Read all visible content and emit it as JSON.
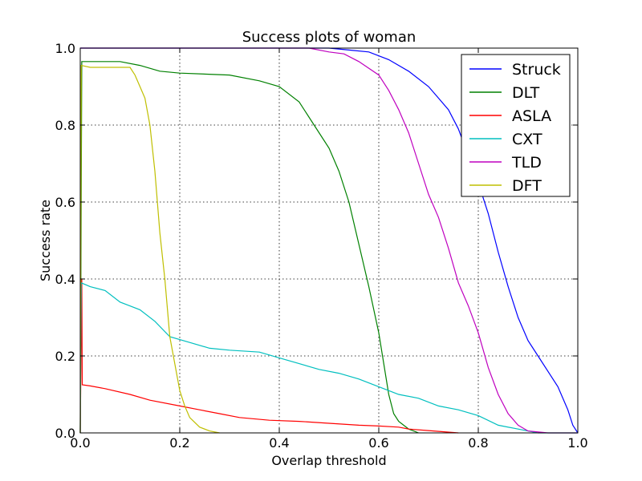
{
  "chart_data": {
    "type": "line",
    "title": "Success plots of woman",
    "xlabel": "Overlap threshold",
    "ylabel": "Success rate",
    "xlim": [
      0,
      1
    ],
    "ylim": [
      0,
      1
    ],
    "xticks": [
      "0.0",
      "0.2",
      "0.4",
      "0.6",
      "0.8",
      "1.0"
    ],
    "yticks": [
      "0.0",
      "0.2",
      "0.4",
      "0.6",
      "0.8",
      "1.0"
    ],
    "grid": true,
    "legend_position": "top-right",
    "series": [
      {
        "name": "Struck",
        "color": "#0000ff",
        "points": [
          [
            0,
            1.0
          ],
          [
            0.5,
            1.0
          ],
          [
            0.54,
            0.995
          ],
          [
            0.58,
            0.99
          ],
          [
            0.62,
            0.97
          ],
          [
            0.66,
            0.94
          ],
          [
            0.7,
            0.9
          ],
          [
            0.72,
            0.87
          ],
          [
            0.74,
            0.84
          ],
          [
            0.76,
            0.79
          ],
          [
            0.78,
            0.72
          ],
          [
            0.8,
            0.65
          ],
          [
            0.82,
            0.57
          ],
          [
            0.84,
            0.47
          ],
          [
            0.86,
            0.38
          ],
          [
            0.88,
            0.3
          ],
          [
            0.9,
            0.24
          ],
          [
            0.92,
            0.2
          ],
          [
            0.94,
            0.16
          ],
          [
            0.96,
            0.12
          ],
          [
            0.98,
            0.06
          ],
          [
            0.99,
            0.02
          ],
          [
            1.0,
            0.0
          ]
        ]
      },
      {
        "name": "DLT",
        "color": "#008000",
        "points": [
          [
            0,
            0.0
          ],
          [
            0.003,
            0.965
          ],
          [
            0.08,
            0.965
          ],
          [
            0.12,
            0.955
          ],
          [
            0.16,
            0.94
          ],
          [
            0.2,
            0.935
          ],
          [
            0.3,
            0.93
          ],
          [
            0.36,
            0.915
          ],
          [
            0.4,
            0.9
          ],
          [
            0.44,
            0.86
          ],
          [
            0.47,
            0.8
          ],
          [
            0.5,
            0.74
          ],
          [
            0.52,
            0.68
          ],
          [
            0.54,
            0.6
          ],
          [
            0.56,
            0.49
          ],
          [
            0.58,
            0.38
          ],
          [
            0.6,
            0.26
          ],
          [
            0.61,
            0.18
          ],
          [
            0.62,
            0.1
          ],
          [
            0.63,
            0.05
          ],
          [
            0.64,
            0.03
          ],
          [
            0.66,
            0.01
          ],
          [
            0.68,
            0.0
          ]
        ]
      },
      {
        "name": "ASLA",
        "color": "#ff0000",
        "points": [
          [
            0,
            0.0
          ],
          [
            0.003,
            0.4
          ],
          [
            0.004,
            0.125
          ],
          [
            0.02,
            0.122
          ],
          [
            0.05,
            0.115
          ],
          [
            0.1,
            0.1
          ],
          [
            0.14,
            0.085
          ],
          [
            0.2,
            0.07
          ],
          [
            0.24,
            0.06
          ],
          [
            0.28,
            0.05
          ],
          [
            0.32,
            0.04
          ],
          [
            0.38,
            0.033
          ],
          [
            0.44,
            0.03
          ],
          [
            0.5,
            0.025
          ],
          [
            0.56,
            0.02
          ],
          [
            0.6,
            0.018
          ],
          [
            0.64,
            0.015
          ],
          [
            0.66,
            0.01
          ],
          [
            0.7,
            0.006
          ],
          [
            0.76,
            0.0
          ]
        ]
      },
      {
        "name": "CXT",
        "color": "#00bfbf",
        "points": [
          [
            0,
            0.0
          ],
          [
            0.002,
            0.39
          ],
          [
            0.02,
            0.38
          ],
          [
            0.05,
            0.37
          ],
          [
            0.08,
            0.34
          ],
          [
            0.12,
            0.32
          ],
          [
            0.15,
            0.29
          ],
          [
            0.18,
            0.25
          ],
          [
            0.22,
            0.235
          ],
          [
            0.26,
            0.22
          ],
          [
            0.3,
            0.215
          ],
          [
            0.36,
            0.21
          ],
          [
            0.4,
            0.195
          ],
          [
            0.44,
            0.18
          ],
          [
            0.48,
            0.165
          ],
          [
            0.52,
            0.155
          ],
          [
            0.56,
            0.14
          ],
          [
            0.6,
            0.12
          ],
          [
            0.64,
            0.1
          ],
          [
            0.68,
            0.09
          ],
          [
            0.72,
            0.07
          ],
          [
            0.76,
            0.06
          ],
          [
            0.8,
            0.045
          ],
          [
            0.84,
            0.02
          ],
          [
            0.88,
            0.01
          ],
          [
            0.92,
            0.0
          ],
          [
            1.0,
            0.0
          ]
        ]
      },
      {
        "name": "TLD",
        "color": "#bf00bf",
        "points": [
          [
            0,
            1.0
          ],
          [
            0.46,
            1.0
          ],
          [
            0.5,
            0.99
          ],
          [
            0.53,
            0.985
          ],
          [
            0.56,
            0.965
          ],
          [
            0.6,
            0.93
          ],
          [
            0.62,
            0.89
          ],
          [
            0.64,
            0.84
          ],
          [
            0.66,
            0.78
          ],
          [
            0.68,
            0.7
          ],
          [
            0.7,
            0.62
          ],
          [
            0.72,
            0.56
          ],
          [
            0.74,
            0.48
          ],
          [
            0.76,
            0.39
          ],
          [
            0.78,
            0.33
          ],
          [
            0.8,
            0.26
          ],
          [
            0.82,
            0.17
          ],
          [
            0.84,
            0.1
          ],
          [
            0.86,
            0.05
          ],
          [
            0.88,
            0.02
          ],
          [
            0.9,
            0.005
          ],
          [
            0.94,
            0.0
          ],
          [
            1.0,
            0.0
          ]
        ]
      },
      {
        "name": "DFT",
        "color": "#bfbf00",
        "points": [
          [
            0,
            0.0
          ],
          [
            0.002,
            0.955
          ],
          [
            0.02,
            0.95
          ],
          [
            0.1,
            0.95
          ],
          [
            0.11,
            0.93
          ],
          [
            0.12,
            0.9
          ],
          [
            0.13,
            0.87
          ],
          [
            0.14,
            0.8
          ],
          [
            0.15,
            0.68
          ],
          [
            0.16,
            0.52
          ],
          [
            0.17,
            0.4
          ],
          [
            0.18,
            0.25
          ],
          [
            0.19,
            0.18
          ],
          [
            0.2,
            0.11
          ],
          [
            0.21,
            0.07
          ],
          [
            0.22,
            0.04
          ],
          [
            0.24,
            0.015
          ],
          [
            0.26,
            0.005
          ],
          [
            0.28,
            0.0
          ]
        ]
      }
    ]
  }
}
